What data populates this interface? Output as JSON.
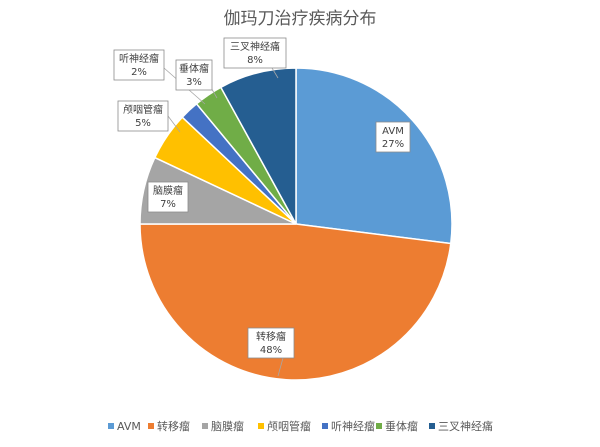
{
  "chart_data": {
    "type": "pie",
    "title": "伽玛刀治疗疾病分布",
    "categories": [
      "AVM",
      "转移瘤",
      "脑膜瘤",
      "颅咽管瘤",
      "听神经瘤",
      "垂体瘤",
      "三叉神经痛"
    ],
    "values": [
      27,
      48,
      7,
      5,
      2,
      3,
      8
    ],
    "value_labels": [
      "27%",
      "48%",
      "7%",
      "5%",
      "2%",
      "3%",
      "8%"
    ],
    "colors": [
      "#5b9bd5",
      "#ed7d31",
      "#a5a5a5",
      "#ffc000",
      "#4472c4",
      "#70ad47",
      "#255e91"
    ],
    "start_angle": "12 o'clock, clockwise",
    "legend": "bottom"
  }
}
